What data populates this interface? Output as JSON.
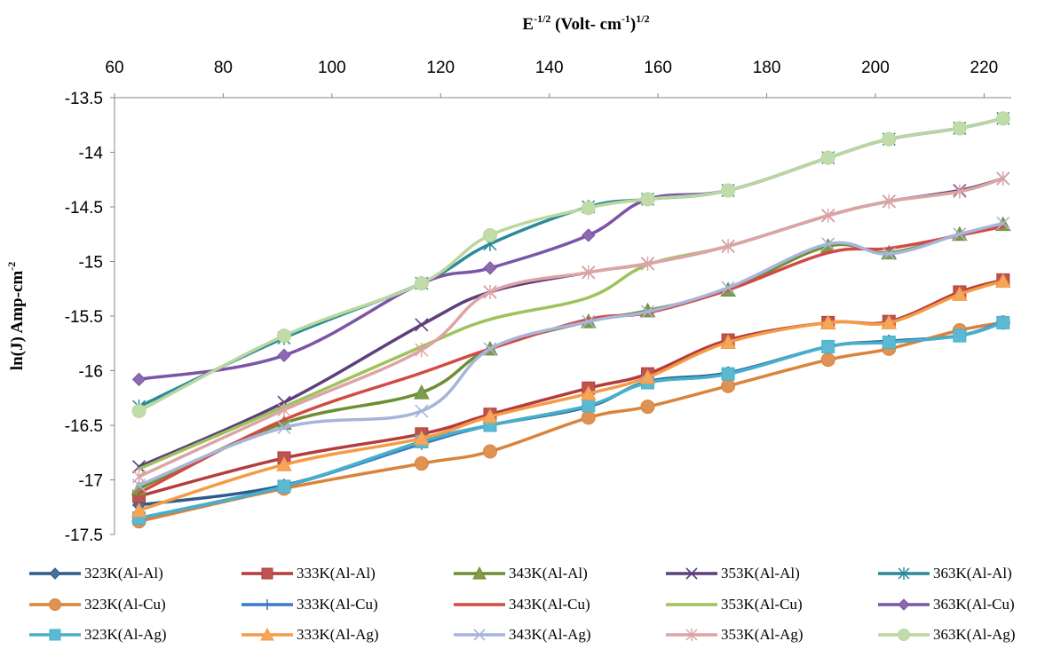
{
  "chart_data": {
    "type": "line",
    "title": "",
    "xlabel": {
      "base": "E",
      "sup1": "-1/2",
      "mid": " (Volt- cm",
      "sup2": "-1",
      "end": ")",
      "sup3": "1/2"
    },
    "ylabel": {
      "base": "ln(J) Amp-cm",
      "sup": "-2"
    },
    "xlim": [
      60,
      225
    ],
    "ylim": [
      -17.5,
      -13.5
    ],
    "x_ticks": [
      "60",
      "80",
      "100",
      "120",
      "140",
      "160",
      "180",
      "200",
      "220"
    ],
    "y_ticks": [
      "-13.5",
      "-14",
      "-14.5",
      "-15",
      "-15.5",
      "-16",
      "-16.5",
      "-17",
      "-17.5"
    ],
    "x_axis_position": "top",
    "grid": false,
    "legend_position": "bottom",
    "x": [
      64.5,
      91.2,
      116.5,
      129.1,
      147.2,
      158.1,
      172.9,
      191.3,
      202.5,
      215.5,
      223.5
    ],
    "series": [
      {
        "name": "323K(Al-Al)",
        "color": "#2E5C8A",
        "marker": "diamond",
        "values": [
          -17.23,
          -17.05,
          -16.65,
          -16.5,
          -16.33,
          -16.1,
          -16.02,
          -15.78,
          -15.73,
          -15.68,
          -15.56
        ]
      },
      {
        "name": "333K(Al-Al)",
        "color": "#B43C3A",
        "marker": "square",
        "values": [
          -17.15,
          -16.8,
          -16.58,
          -16.4,
          -16.16,
          -16.03,
          -15.72,
          -15.56,
          -15.55,
          -15.28,
          -15.17
        ]
      },
      {
        "name": "343K(Al-Al)",
        "color": "#6E8E33",
        "marker": "triangle",
        "values": [
          -17.08,
          -16.48,
          -16.2,
          -15.8,
          -15.55,
          -15.45,
          -15.26,
          -14.86,
          -14.92,
          -14.75,
          -14.66
        ]
      },
      {
        "name": "353K(Al-Al)",
        "color": "#5D3F7D",
        "marker": "x",
        "values": [
          -16.88,
          -16.29,
          -15.58,
          -15.28,
          -15.1,
          -15.02,
          -14.86,
          -14.58,
          -14.45,
          -14.35,
          -14.24
        ]
      },
      {
        "name": "363K(Al-Al)",
        "color": "#2A8A9A",
        "marker": "asterisk",
        "values": [
          -16.33,
          -15.7,
          -15.2,
          -14.84,
          -14.5,
          -14.43,
          -14.35,
          -14.05,
          -13.88,
          -13.78,
          -13.69
        ]
      },
      {
        "name": "323K(Al-Cu)",
        "color": "#D9833B",
        "marker": "circle",
        "values": [
          -17.38,
          -17.08,
          -16.85,
          -16.74,
          -16.43,
          -16.33,
          -16.14,
          -15.9,
          -15.8,
          -15.63,
          -15.56
        ]
      },
      {
        "name": "333K(Al-Cu)",
        "color": "#3C7BC4",
        "marker": "plus",
        "values": [
          -17.35,
          -17.06,
          -16.67,
          -16.5,
          -16.32,
          -16.11,
          -16.03,
          -15.78,
          -15.74,
          -15.68,
          -15.55
        ]
      },
      {
        "name": "343K(Al-Cu)",
        "color": "#D24A44",
        "marker": "none",
        "values": [
          -17.12,
          -16.45,
          -16.02,
          -15.8,
          -15.53,
          -15.47,
          -15.26,
          -14.92,
          -14.88,
          -14.76,
          -14.68
        ]
      },
      {
        "name": "353K(Al-Cu)",
        "color": "#9DC35A",
        "marker": "none",
        "values": [
          -16.9,
          -16.33,
          -15.78,
          -15.53,
          -15.33,
          -15.03,
          -14.86,
          -14.58,
          -14.45,
          -14.36,
          -14.24
        ]
      },
      {
        "name": "363K(Al-Cu)",
        "color": "#7B56A5",
        "marker": "diamond",
        "values": [
          -16.08,
          -15.86,
          -15.2,
          -15.06,
          -14.76,
          -14.43,
          -14.35,
          -14.05,
          -13.88,
          -13.78,
          -13.69
        ]
      },
      {
        "name": "323K(Al-Ag)",
        "color": "#46B0CC",
        "marker": "square",
        "values": [
          -17.35,
          -17.06,
          -16.65,
          -16.5,
          -16.32,
          -16.11,
          -16.03,
          -15.78,
          -15.74,
          -15.68,
          -15.56
        ]
      },
      {
        "name": "333K(Al-Ag)",
        "color": "#F59A45",
        "marker": "triangle",
        "values": [
          -17.28,
          -16.86,
          -16.62,
          -16.42,
          -16.21,
          -16.06,
          -15.74,
          -15.56,
          -15.56,
          -15.3,
          -15.18
        ]
      },
      {
        "name": "343K(Al-Ag)",
        "color": "#A7B5DB",
        "marker": "x",
        "values": [
          -17.05,
          -16.52,
          -16.37,
          -15.8,
          -15.55,
          -15.46,
          -15.24,
          -14.84,
          -14.93,
          -14.75,
          -14.65
        ]
      },
      {
        "name": "353K(Al-Ag)",
        "color": "#DDA4A5",
        "marker": "asterisk",
        "values": [
          -16.97,
          -16.36,
          -15.81,
          -15.28,
          -15.1,
          -15.02,
          -14.86,
          -14.58,
          -14.45,
          -14.36,
          -14.24
        ]
      },
      {
        "name": "363K(Al-Ag)",
        "color": "#B9D79E",
        "marker": "circle",
        "values": [
          -16.37,
          -15.68,
          -15.2,
          -14.76,
          -14.51,
          -14.43,
          -14.35,
          -14.05,
          -13.88,
          -13.78,
          -13.69
        ]
      }
    ]
  }
}
